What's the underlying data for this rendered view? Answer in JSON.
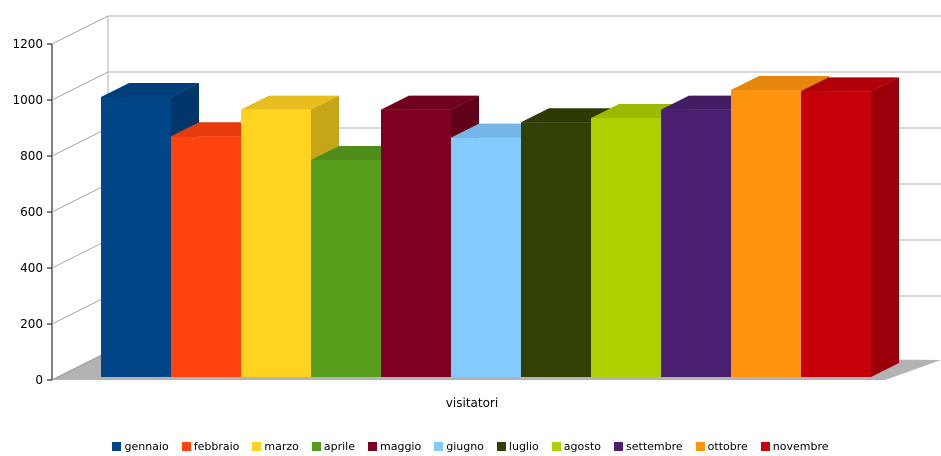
{
  "chart_data": {
    "type": "bar",
    "categories": [
      "visitatori"
    ],
    "xlabel": "visitatori",
    "ylim": [
      0,
      1200
    ],
    "yticks": [
      0,
      200,
      400,
      600,
      800,
      1000,
      1200
    ],
    "grid": true,
    "legend_position": "bottom",
    "series": [
      {
        "name": "gennaio",
        "values": [
          1000
        ],
        "color": "#004586"
      },
      {
        "name": "febbraio",
        "values": [
          860
        ],
        "color": "#ff420e"
      },
      {
        "name": "marzo",
        "values": [
          955
        ],
        "color": "#ffd320"
      },
      {
        "name": "aprile",
        "values": [
          775
        ],
        "color": "#579d1c"
      },
      {
        "name": "maggio",
        "values": [
          955
        ],
        "color": "#7e0021"
      },
      {
        "name": "giugno",
        "values": [
          855
        ],
        "color": "#83caff"
      },
      {
        "name": "luglio",
        "values": [
          910
        ],
        "color": "#314004"
      },
      {
        "name": "agosto",
        "values": [
          925
        ],
        "color": "#aecf00"
      },
      {
        "name": "settembre",
        "values": [
          955
        ],
        "color": "#4b1f6f"
      },
      {
        "name": "ottobre",
        "values": [
          1025
        ],
        "color": "#ff950e"
      },
      {
        "name": "novembre",
        "values": [
          1020
        ],
        "color": "#c5000b"
      }
    ]
  }
}
